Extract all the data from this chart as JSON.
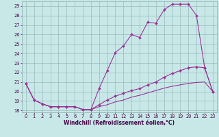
{
  "xlabel": "Windchill (Refroidissement éolien,°C)",
  "bg_color": "#c8e8e8",
  "line_color": "#993399",
  "xlim": [
    -0.5,
    23.5
  ],
  "ylim": [
    17.8,
    29.5
  ],
  "xticks": [
    0,
    1,
    2,
    3,
    4,
    5,
    6,
    7,
    8,
    9,
    10,
    11,
    12,
    13,
    14,
    15,
    16,
    17,
    18,
    19,
    20,
    21,
    22,
    23
  ],
  "yticks": [
    18,
    19,
    20,
    21,
    22,
    23,
    24,
    25,
    26,
    27,
    28,
    29
  ],
  "y_bottom": [
    20.8,
    19.1,
    18.7,
    18.4,
    18.4,
    18.4,
    18.4,
    18.1,
    18.1,
    18.4,
    18.6,
    18.9,
    19.1,
    19.4,
    19.6,
    19.85,
    20.1,
    20.35,
    20.55,
    20.7,
    20.85,
    20.95,
    21.0,
    20.0
  ],
  "y_mid": [
    20.8,
    19.1,
    18.7,
    18.4,
    18.4,
    18.4,
    18.4,
    18.1,
    18.1,
    18.6,
    19.1,
    19.5,
    19.8,
    20.1,
    20.3,
    20.7,
    21.0,
    21.5,
    21.9,
    22.2,
    22.5,
    22.6,
    22.5,
    20.0
  ],
  "y_top": [
    20.8,
    19.1,
    18.7,
    18.4,
    18.4,
    18.4,
    18.4,
    18.1,
    18.1,
    20.3,
    22.2,
    24.1,
    24.8,
    26.0,
    25.7,
    27.3,
    27.2,
    28.6,
    29.2,
    29.2,
    29.2,
    28.0,
    22.5,
    20.0
  ],
  "xlabel_fontsize": 5.5,
  "tick_fontsize": 4.8
}
